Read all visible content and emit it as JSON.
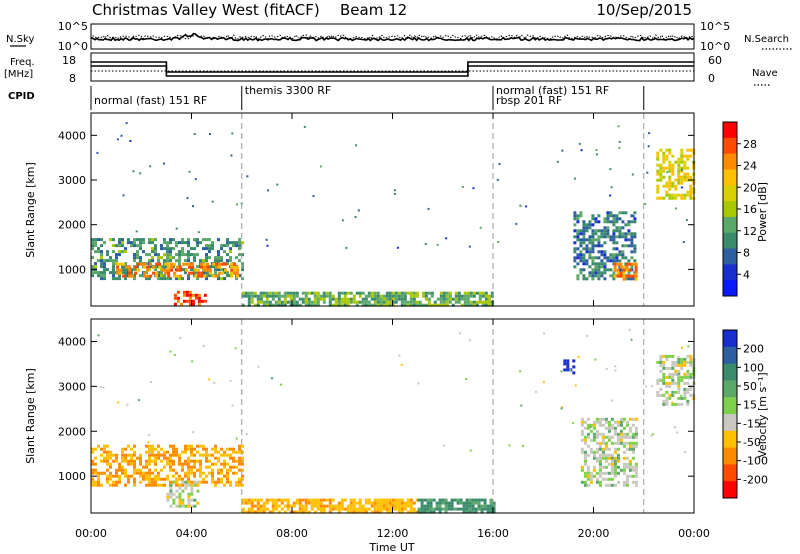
{
  "header": {
    "station": "Christmas Valley West (fitACF)",
    "beam": "Beam 12",
    "date": "10/Sep/2015"
  },
  "left_labels": {
    "nsky": "N.Sky",
    "freq_line1": "Freq.",
    "freq_line2": "[MHz]",
    "cpid": "CPID"
  },
  "right_labels": {
    "nsearch": "N.Search",
    "nave": "Nave"
  },
  "noise_panel": {
    "ytick_top": "10^5",
    "ytick_bottom": "10^0",
    "rtick_top": "10^5",
    "rtick_bottom": "10^0"
  },
  "freq_panel": {
    "left_ticks": [
      "18",
      "8"
    ],
    "right_ticks": [
      "60",
      "0"
    ]
  },
  "cpid_segments": [
    {
      "label": "normal (fast) 151 RF",
      "start_h": 0,
      "end_h": 6
    },
    {
      "label": "themis 3300 RF",
      "start_h": 6,
      "end_h": 16
    },
    {
      "label": "rbsp 201 RF",
      "start_h": 16,
      "end_h": 22
    },
    {
      "label": "normal (fast) 151 RF",
      "start_h": 16,
      "end_h": 22
    }
  ],
  "x_axis": {
    "label": "Time UT",
    "ticks": [
      "00:00",
      "04:00",
      "08:00",
      "12:00",
      "16:00",
      "20:00",
      "00:00"
    ],
    "range_h": [
      0,
      24
    ]
  },
  "power_panel": {
    "ylabel": "Slant Range [km]",
    "yticks": [
      "4000",
      "3000",
      "2000",
      "1000"
    ],
    "yrange_km": [
      180,
      4500
    ],
    "colorbar_label": "Power [dB]",
    "colorbar_ticks": [
      "28",
      "24",
      "20",
      "16",
      "12",
      "8",
      "4"
    ],
    "colorbar_colors": [
      "#ff0000",
      "#ff4a00",
      "#ff8c00",
      "#ffc000",
      "#d8d000",
      "#a8c800",
      "#5ca86a",
      "#3a8a6c",
      "#2e5fa0",
      "#1a2ed0",
      "#0a18ff"
    ]
  },
  "velocity_panel": {
    "ylabel": "Slant Range [km]",
    "yticks": [
      "4000",
      "3000",
      "2000",
      "1000"
    ],
    "yrange_km": [
      180,
      4500
    ],
    "colorbar_label": "Velocity [m s⁻¹]",
    "colorbar_ticks": [
      "200",
      "100",
      "50",
      "15",
      "-15",
      "-50",
      "-100",
      "-200"
    ],
    "colorbar_colors": [
      "#1a2ed0",
      "#2e5fa0",
      "#3a8a6c",
      "#5ca86a",
      "#7ed04a",
      "#c8c8c0",
      "#ffc000",
      "#ff8c00",
      "#ff4a00",
      "#ff0000"
    ]
  },
  "chart_data": [
    {
      "type": "heatmap",
      "title": "Christmas Valley West (fitACF) Beam 12 10/Sep/2015",
      "xlabel": "Time UT",
      "ylabel": "Slant Range [km]",
      "colorbar": "Power [dB]",
      "x_range_h": [
        0,
        24
      ],
      "y_range_km": [
        180,
        4500
      ],
      "regions": [
        {
          "t0": 0.0,
          "t1": 6.0,
          "r0": 800,
          "r1": 1700,
          "value": 10
        },
        {
          "t0": 1.0,
          "t1": 5.8,
          "r0": 850,
          "r1": 1150,
          "value": 24
        },
        {
          "t0": 3.3,
          "t1": 4.5,
          "r0": 220,
          "r1": 520,
          "value": 28
        },
        {
          "t0": 6.0,
          "t1": 16.0,
          "r0": 180,
          "r1": 500,
          "value": 12
        },
        {
          "t0": 19.2,
          "t1": 21.7,
          "r0": 800,
          "r1": 2300,
          "value": 8
        },
        {
          "t0": 20.8,
          "t1": 21.7,
          "r0": 750,
          "r1": 1150,
          "value": 24
        },
        {
          "t0": 22.5,
          "t1": 24.0,
          "r0": 2600,
          "r1": 3700,
          "value": 18
        }
      ]
    },
    {
      "type": "heatmap",
      "title": "",
      "xlabel": "Time UT",
      "ylabel": "Slant Range [km]",
      "colorbar": "Velocity [m s⁻¹]",
      "x_range_h": [
        0,
        24
      ],
      "y_range_km": [
        180,
        4500
      ],
      "regions": [
        {
          "t0": 0.0,
          "t1": 6.0,
          "r0": 800,
          "r1": 1700,
          "value": -50
        },
        {
          "t0": 3.0,
          "t1": 4.3,
          "r0": 300,
          "r1": 900,
          "value": 0
        },
        {
          "t0": 6.0,
          "t1": 13.0,
          "r0": 180,
          "r1": 500,
          "value": -40
        },
        {
          "t0": 13.0,
          "t1": 16.0,
          "r0": 180,
          "r1": 500,
          "value": 40
        },
        {
          "t0": 18.8,
          "t1": 19.2,
          "r0": 3300,
          "r1": 3600,
          "value": 200
        },
        {
          "t0": 19.5,
          "t1": 21.7,
          "r0": 800,
          "r1": 2300,
          "value": 0
        },
        {
          "t0": 22.5,
          "t1": 24.0,
          "r0": 2600,
          "r1": 3700,
          "value": 0
        }
      ]
    }
  ]
}
